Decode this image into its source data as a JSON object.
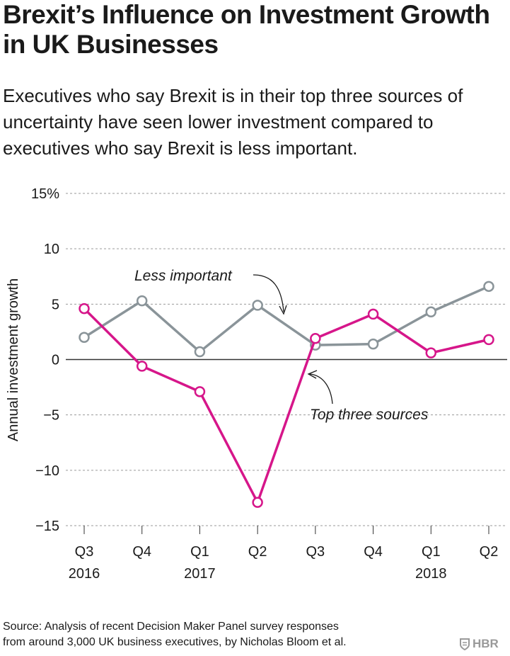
{
  "header": {
    "title": "Brexit’s Influence on Investment Growth in UK Businesses",
    "subtitle": "Executives who say Brexit is in their top three sources of uncertainty have seen lower investment compared to executives who say Brexit is less important."
  },
  "chart_data": {
    "type": "line",
    "ylabel": "Annual investment growth",
    "xlabel": "",
    "ylim": [
      -15,
      15
    ],
    "y_ticks": [
      15,
      10,
      5,
      0,
      -5,
      -10,
      -15
    ],
    "y_tick_labels": [
      "15%",
      "10",
      "5",
      "0",
      "−5",
      "−10",
      "−15"
    ],
    "categories": [
      "Q3",
      "Q4",
      "Q1",
      "Q2",
      "Q3",
      "Q4",
      "Q1",
      "Q2"
    ],
    "year_labels": [
      "2016",
      "",
      "2017",
      "",
      "",
      "",
      "2018",
      ""
    ],
    "grid": true,
    "series": [
      {
        "name": "Less important",
        "color": "#8a9499",
        "values": [
          2.0,
          5.3,
          0.7,
          4.9,
          1.3,
          1.4,
          4.3,
          6.6
        ]
      },
      {
        "name": "Top three sources",
        "color": "#d6168a",
        "values": [
          4.6,
          -0.6,
          -2.9,
          -12.9,
          1.9,
          4.1,
          0.6,
          1.8
        ]
      }
    ],
    "annotations": [
      "Less important",
      "Top three sources"
    ]
  },
  "footer": {
    "source_line1": "Source: Analysis of recent Decision Maker Panel survey responses",
    "source_line2": "from around 3,000 UK business executives, by Nicholas Bloom et al.",
    "logo_text": "HBR"
  }
}
